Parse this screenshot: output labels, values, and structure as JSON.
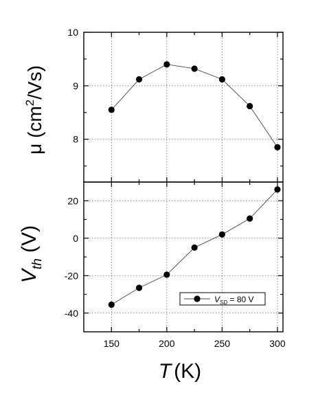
{
  "chart_data": [
    {
      "type": "scatter",
      "panel": "top",
      "ylabel": {
        "symbol": "μ",
        "text": " (cm",
        "sup": "2",
        "tail": "/Vs)"
      },
      "ylim": [
        7.2,
        10
      ],
      "xlim": [
        125,
        305
      ],
      "yticks": [
        8,
        9,
        10
      ],
      "grid": true,
      "series": [
        {
          "x": [
            150,
            175,
            200,
            225,
            250,
            275,
            300
          ],
          "values": [
            8.55,
            9.12,
            9.4,
            9.32,
            9.12,
            8.62,
            7.85
          ]
        }
      ]
    },
    {
      "type": "scatter",
      "panel": "bottom",
      "ylabel": {
        "main": "V",
        "sub": "th",
        "units": "(V)"
      },
      "xlabel": {
        "main": "T",
        "units": "(K)"
      },
      "ylim": [
        -50,
        30
      ],
      "xlim": [
        125,
        305
      ],
      "xticks": [
        150,
        200,
        250,
        300
      ],
      "yticks": [
        -40,
        -20,
        0,
        20
      ],
      "grid": true,
      "legend": {
        "placement": "bottom-right",
        "label_main": "V",
        "label_sub": "SD",
        "label_tail": " = 80 V"
      },
      "series": [
        {
          "x": [
            150,
            175,
            200,
            225,
            250,
            275,
            300
          ],
          "values": [
            -35.5,
            -26.5,
            -19.5,
            -5,
            2,
            10.5,
            26
          ]
        }
      ]
    }
  ]
}
